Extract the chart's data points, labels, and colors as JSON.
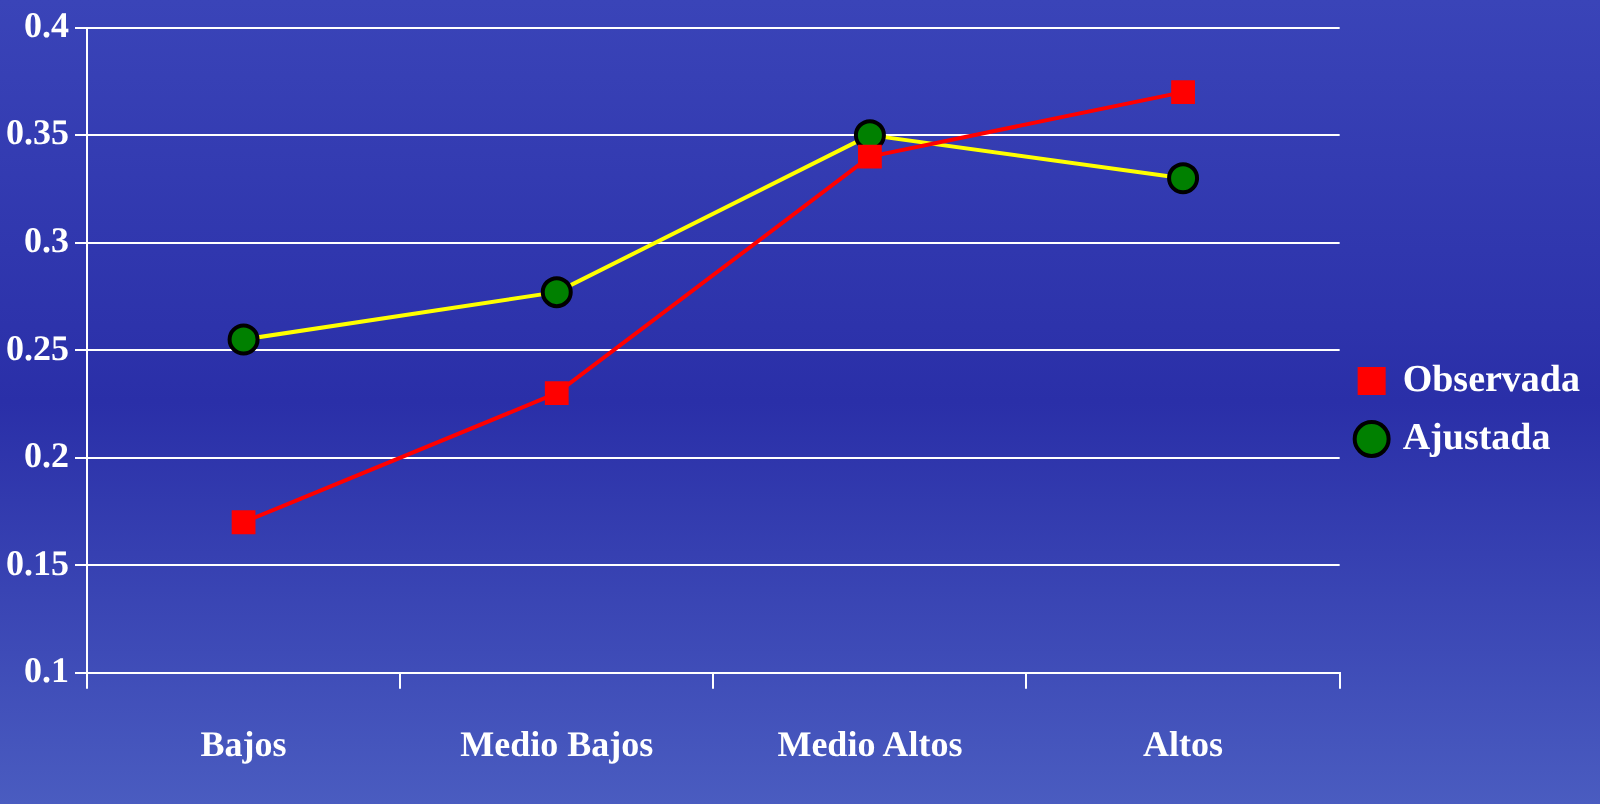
{
  "chart_data": {
    "type": "line",
    "categories": [
      "Bajos",
      "Medio Bajos",
      "Medio Altos",
      "Altos"
    ],
    "series": [
      {
        "name": "Observada",
        "color": "#ff0000",
        "marker": "square",
        "values": [
          0.17,
          0.23,
          0.34,
          0.37
        ]
      },
      {
        "name": "Ajustada",
        "color": "#ffff00",
        "marker": "circle",
        "values": [
          0.255,
          0.277,
          0.35,
          0.33
        ]
      }
    ],
    "ylim": [
      0.1,
      0.4
    ],
    "yticks": [
      0.1,
      0.15,
      0.2,
      0.25,
      0.3,
      0.35,
      0.4
    ],
    "grid": "y",
    "legend": "right",
    "line_style": "solid"
  }
}
